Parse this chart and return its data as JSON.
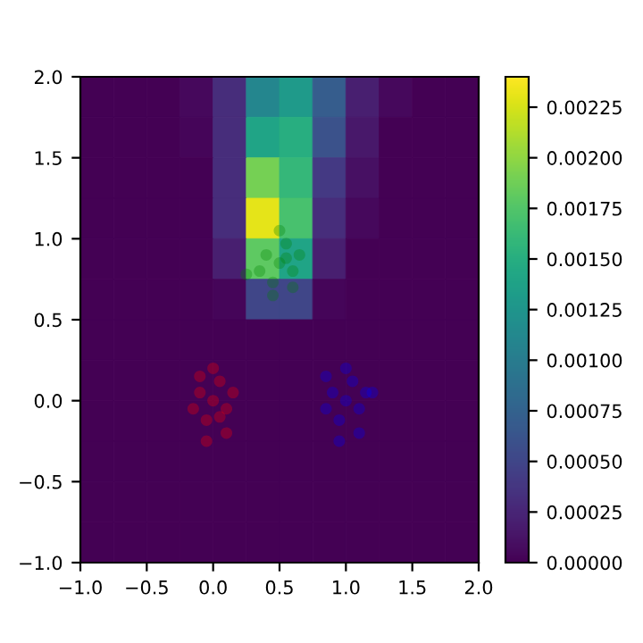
{
  "chart_data": {
    "type": "heatmap",
    "xlim": [
      -1.0,
      2.0
    ],
    "ylim": [
      -1.0,
      2.0
    ],
    "xticks": [
      {
        "value": -1.0,
        "label": "−1.0"
      },
      {
        "value": -0.5,
        "label": "−0.5"
      },
      {
        "value": 0.0,
        "label": "0.0"
      },
      {
        "value": 0.5,
        "label": "0.5"
      },
      {
        "value": 1.0,
        "label": "1.0"
      },
      {
        "value": 1.5,
        "label": "1.5"
      },
      {
        "value": 2.0,
        "label": "2.0"
      }
    ],
    "yticks": [
      {
        "value": -1.0,
        "label": "−1.0"
      },
      {
        "value": -0.5,
        "label": "−0.5"
      },
      {
        "value": 0.0,
        "label": "0.0"
      },
      {
        "value": 0.5,
        "label": "0.5"
      },
      {
        "value": 1.0,
        "label": "1.0"
      },
      {
        "value": 1.5,
        "label": "1.5"
      },
      {
        "value": 2.0,
        "label": "2.0"
      }
    ],
    "cells": [
      [
        0,
        0,
        0,
        5e-05,
        0.0003,
        0.0011,
        0.0013,
        0.0007,
        0.0002,
        5e-05,
        0,
        0
      ],
      [
        0,
        0,
        0,
        3e-05,
        0.0003,
        0.0014,
        0.0015,
        0.0006,
        0.00015,
        0,
        0,
        0
      ],
      [
        0,
        0,
        0,
        0,
        0.0003,
        0.0019,
        0.0016,
        0.0004,
        0.0001,
        0,
        0,
        0
      ],
      [
        0,
        0,
        0,
        0,
        0.0003,
        0.0023,
        0.0017,
        0.0003,
        5e-05,
        0,
        0,
        0
      ],
      [
        0,
        0,
        0,
        0,
        0.0002,
        0.0018,
        0.0014,
        0.0002,
        0,
        0,
        0,
        0
      ],
      [
        0,
        0,
        0,
        0,
        3e-05,
        0.0005,
        0.0005,
        3e-05,
        0,
        0,
        0,
        0
      ],
      [
        0,
        0,
        0,
        0,
        0,
        0,
        0,
        0,
        0,
        0,
        0,
        0
      ],
      [
        0,
        0,
        0,
        0,
        0,
        0,
        0,
        0,
        0,
        0,
        0,
        0
      ],
      [
        0,
        0,
        0,
        0,
        0,
        0,
        0,
        0,
        0,
        0,
        0,
        0
      ],
      [
        0,
        0,
        0,
        0,
        0,
        0,
        0,
        0,
        0,
        0,
        0,
        0
      ],
      [
        0,
        0,
        0,
        0,
        0,
        0,
        0,
        0,
        0,
        0,
        0,
        0
      ],
      [
        0,
        0,
        0,
        0,
        0,
        0,
        0,
        0,
        0,
        0,
        0,
        0
      ]
    ],
    "clim": [
      0,
      0.0024
    ],
    "cticks": [
      {
        "value": 0,
        "label": "0.00000"
      },
      {
        "value": 0.00025,
        "label": "0.00025"
      },
      {
        "value": 0.0005,
        "label": "0.00050"
      },
      {
        "value": 0.00075,
        "label": "0.00075"
      },
      {
        "value": 0.001,
        "label": "0.00100"
      },
      {
        "value": 0.00125,
        "label": "0.00125"
      },
      {
        "value": 0.0015,
        "label": "0.00150"
      },
      {
        "value": 0.00175,
        "label": "0.00175"
      },
      {
        "value": 0.002,
        "label": "0.00200"
      },
      {
        "value": 0.00225,
        "label": "0.00225"
      }
    ],
    "marker": "circle",
    "series": [
      {
        "type": "scatter",
        "color": "#ff0000",
        "x": [
          0.0,
          -0.1,
          0.1,
          0.05,
          -0.05,
          -0.15,
          0.15,
          0.0,
          -0.05,
          0.1,
          -0.1,
          0.05
        ],
        "values": [
          0.0,
          0.05,
          -0.05,
          0.12,
          -0.12,
          -0.05,
          0.05,
          0.2,
          -0.25,
          -0.2,
          0.15,
          -0.1
        ]
      },
      {
        "type": "scatter",
        "color": "#0000ff",
        "x": [
          1.0,
          0.9,
          1.1,
          1.05,
          0.95,
          0.85,
          1.15,
          1.0,
          0.95,
          1.1,
          0.85,
          1.2
        ],
        "values": [
          0.0,
          0.05,
          -0.05,
          0.12,
          -0.12,
          -0.05,
          0.05,
          0.2,
          -0.25,
          -0.2,
          0.15,
          0.05
        ]
      },
      {
        "type": "scatter",
        "color": "#008000",
        "x": [
          0.5,
          0.4,
          0.6,
          0.55,
          0.45,
          0.35,
          0.65,
          0.5,
          0.45,
          0.6,
          0.25,
          0.55
        ],
        "values": [
          0.85,
          0.9,
          0.8,
          0.97,
          0.73,
          0.8,
          0.9,
          1.05,
          0.65,
          0.7,
          0.78,
          0.88
        ]
      }
    ]
  }
}
